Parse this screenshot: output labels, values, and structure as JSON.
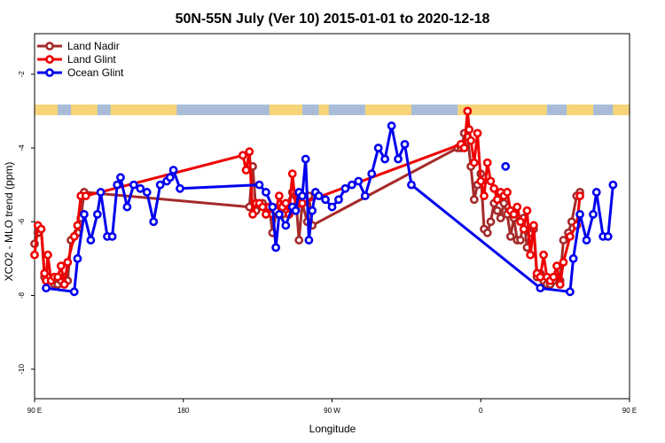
{
  "chart_data": {
    "type": "line",
    "title": "50N-55N July (Ver 10)   2015-01-01 to 2020-12-18",
    "xlabel": "Longitude",
    "ylabel": "XCO2 - MLO trend (ppm)",
    "xlim": [
      90,
      450
    ],
    "ylim": [
      -10.8,
      -0.9
    ],
    "x_ticks": [
      {
        "value": 90,
        "label": "90 E"
      },
      {
        "value": 180,
        "label": "180"
      },
      {
        "value": 270,
        "label": "90 W"
      },
      {
        "value": 360,
        "label": "0"
      },
      {
        "value": 450,
        "label": "90 E"
      },
      {
        "value": 540,
        "label": "180"
      }
    ],
    "y_ticks": [
      {
        "value": -2,
        "label": "-2"
      },
      {
        "value": -4,
        "label": "-4"
      },
      {
        "value": -6,
        "label": "-6"
      },
      {
        "value": -8,
        "label": "-8"
      },
      {
        "value": -10,
        "label": "-10"
      }
    ],
    "legend": "top-left",
    "grid": false,
    "colors": {
      "land": "#f6d57a",
      "ocean": "#a8bcd8",
      "axis": "#000000"
    },
    "series": [
      {
        "name": "Land Nadir",
        "color": "#a52a2a",
        "points": [
          [
            90,
            -6.6
          ],
          [
            92,
            -6.3
          ],
          [
            94,
            -6.2
          ],
          [
            96,
            -7.5
          ],
          [
            98,
            -7.5
          ],
          [
            100,
            -7.6
          ],
          [
            102,
            -7.7
          ],
          [
            104,
            -7.7
          ],
          [
            106,
            -7.6
          ],
          [
            108,
            -7.5
          ],
          [
            110,
            -7.6
          ],
          [
            112,
            -6.5
          ],
          [
            116,
            -6.3
          ],
          [
            118,
            -5.9
          ],
          [
            120,
            -5.2
          ],
          [
            220,
            -5.6
          ],
          [
            222,
            -4.5
          ],
          [
            224,
            -5.7
          ],
          [
            228,
            -5.5
          ],
          [
            232,
            -5.6
          ],
          [
            234,
            -6.3
          ],
          [
            236,
            -5.8
          ],
          [
            238,
            -5.7
          ],
          [
            240,
            -5.8
          ],
          [
            246,
            -5.2
          ],
          [
            248,
            -5.3
          ],
          [
            250,
            -6.5
          ],
          [
            252,
            -5.5
          ],
          [
            255,
            -6.0
          ],
          [
            256,
            -5.3
          ],
          [
            258,
            -6.1
          ],
          [
            346,
            -4.0
          ],
          [
            348,
            -4.0
          ],
          [
            349,
            -3.9
          ],
          [
            350,
            -3.6
          ],
          [
            352,
            -3.7
          ],
          [
            354,
            -4.5
          ],
          [
            356,
            -5.4
          ],
          [
            358,
            -5.0
          ],
          [
            360,
            -4.7
          ],
          [
            362,
            -6.2
          ],
          [
            364,
            -6.3
          ],
          [
            366,
            -6.0
          ],
          [
            368,
            -5.5
          ],
          [
            370,
            -5.7
          ],
          [
            372,
            -5.9
          ],
          [
            374,
            -5.5
          ],
          [
            376,
            -5.8
          ],
          [
            378,
            -6.4
          ],
          [
            380,
            -5.9
          ],
          [
            382,
            -6.5
          ],
          [
            384,
            -6.5
          ],
          [
            386,
            -5.9
          ],
          [
            388,
            -6.7
          ],
          [
            390,
            -6.3
          ],
          [
            392,
            -6.2
          ],
          [
            394,
            -7.5
          ],
          [
            396,
            -7.4
          ],
          [
            398,
            -7.6
          ],
          [
            400,
            -7.7
          ],
          [
            402,
            -7.7
          ],
          [
            404,
            -7.6
          ],
          [
            406,
            -7.5
          ],
          [
            408,
            -7.6
          ],
          [
            410,
            -6.5
          ],
          [
            413,
            -6.3
          ],
          [
            415,
            -6.0
          ],
          [
            418,
            -5.3
          ],
          [
            420,
            -5.2
          ]
        ]
      },
      {
        "name": "Land Glint",
        "color": "#ee0000",
        "points": [
          [
            90,
            -6.9
          ],
          [
            92,
            -6.1
          ],
          [
            94,
            -6.2
          ],
          [
            96,
            -7.4
          ],
          [
            97,
            -7.6
          ],
          [
            98,
            -6.9
          ],
          [
            100,
            -7.6
          ],
          [
            102,
            -7.5
          ],
          [
            104,
            -7.5
          ],
          [
            106,
            -7.2
          ],
          [
            108,
            -7.7
          ],
          [
            110,
            -7.1
          ],
          [
            114,
            -6.4
          ],
          [
            116,
            -6.1
          ],
          [
            118,
            -5.3
          ],
          [
            121,
            -5.3
          ],
          [
            216,
            -4.2
          ],
          [
            218,
            -4.6
          ],
          [
            220,
            -4.1
          ],
          [
            222,
            -5.8
          ],
          [
            224,
            -5.5
          ],
          [
            226,
            -5.5
          ],
          [
            228,
            -5.6
          ],
          [
            230,
            -5.8
          ],
          [
            232,
            -5.6
          ],
          [
            234,
            -5.8
          ],
          [
            236,
            -5.7
          ],
          [
            238,
            -5.3
          ],
          [
            240,
            -5.6
          ],
          [
            242,
            -5.5
          ],
          [
            244,
            -5.8
          ],
          [
            246,
            -4.7
          ],
          [
            248,
            -5.6
          ],
          [
            250,
            -5.3
          ],
          [
            252,
            -5.5
          ],
          [
            348,
            -3.9
          ],
          [
            350,
            -4.0
          ],
          [
            352,
            -3.0
          ],
          [
            353,
            -3.5
          ],
          [
            354,
            -3.8
          ],
          [
            356,
            -4.4
          ],
          [
            358,
            -3.6
          ],
          [
            360,
            -4.9
          ],
          [
            362,
            -5.3
          ],
          [
            364,
            -4.4
          ],
          [
            366,
            -4.9
          ],
          [
            368,
            -5.1
          ],
          [
            370,
            -5.4
          ],
          [
            372,
            -5.2
          ],
          [
            374,
            -5.3
          ],
          [
            376,
            -5.2
          ],
          [
            378,
            -5.7
          ],
          [
            380,
            -5.8
          ],
          [
            382,
            -5.6
          ],
          [
            384,
            -6.0
          ],
          [
            386,
            -6.2
          ],
          [
            388,
            -5.7
          ],
          [
            390,
            -6.9
          ],
          [
            392,
            -6.1
          ],
          [
            394,
            -7.4
          ],
          [
            396,
            -7.5
          ],
          [
            398,
            -6.9
          ],
          [
            400,
            -7.5
          ],
          [
            402,
            -7.6
          ],
          [
            404,
            -7.5
          ],
          [
            406,
            -7.2
          ],
          [
            408,
            -7.7
          ],
          [
            410,
            -7.1
          ],
          [
            414,
            -6.4
          ],
          [
            418,
            -6.1
          ],
          [
            420,
            -5.3
          ]
        ]
      },
      {
        "name": "Ocean Glint",
        "color": "#0000ee",
        "points": [
          [
            97,
            -7.8
          ],
          [
            114,
            -7.9
          ],
          [
            116,
            -7.0
          ],
          [
            120,
            -5.8
          ],
          [
            124,
            -6.5
          ],
          [
            128,
            -5.8
          ],
          [
            130,
            -5.2
          ],
          [
            134,
            -6.4
          ],
          [
            137,
            -6.4
          ],
          [
            140,
            -5.0
          ],
          [
            142,
            -4.8
          ],
          [
            146,
            -5.6
          ],
          [
            150,
            -5.0
          ],
          [
            154,
            -5.1
          ],
          [
            158,
            -5.2
          ],
          [
            162,
            -6.0
          ],
          [
            166,
            -5.0
          ],
          [
            170,
            -4.9
          ],
          [
            172,
            -4.8
          ],
          [
            174,
            -4.6
          ],
          [
            178,
            -5.1
          ],
          [
            226,
            -5.0
          ],
          [
            230,
            -5.2
          ],
          [
            234,
            -5.6
          ],
          [
            236,
            -6.7
          ],
          [
            238,
            -5.8
          ],
          [
            242,
            -6.1
          ],
          [
            246,
            -5.6
          ],
          [
            248,
            -5.7
          ],
          [
            250,
            -5.2
          ],
          [
            252,
            -5.3
          ],
          [
            254,
            -4.3
          ],
          [
            256,
            -6.5
          ],
          [
            258,
            -5.7
          ],
          [
            260,
            -5.2
          ],
          [
            262,
            -5.3
          ],
          [
            266,
            -5.4
          ],
          [
            270,
            -5.6
          ],
          [
            274,
            -5.4
          ],
          [
            278,
            -5.1
          ],
          [
            282,
            -5.0
          ],
          [
            286,
            -4.9
          ],
          [
            290,
            -5.3
          ],
          [
            294,
            -4.7
          ],
          [
            298,
            -4.0
          ],
          [
            302,
            -4.3
          ],
          [
            306,
            -3.4
          ],
          [
            310,
            -4.3
          ],
          [
            314,
            -3.9
          ],
          [
            318,
            -5.0
          ],
          [
            396,
            -7.8
          ],
          [
            414,
            -7.9
          ],
          [
            416,
            -7.0
          ],
          [
            420,
            -5.8
          ],
          [
            424,
            -6.5
          ],
          [
            428,
            -5.8
          ],
          [
            430,
            -5.2
          ],
          [
            434,
            -6.4
          ],
          [
            437,
            -6.4
          ],
          [
            440,
            -5.0
          ]
        ]
      }
    ],
    "extra_points": [
      {
        "series": "Ocean Glint",
        "x": 375,
        "y": -4.5
      }
    ]
  },
  "legend_items": [
    {
      "label": "Land Nadir",
      "color": "#a52a2a"
    },
    {
      "label": "Land Glint",
      "color": "#ee0000"
    },
    {
      "label": "Ocean Glint",
      "color": "#0000ee"
    }
  ]
}
